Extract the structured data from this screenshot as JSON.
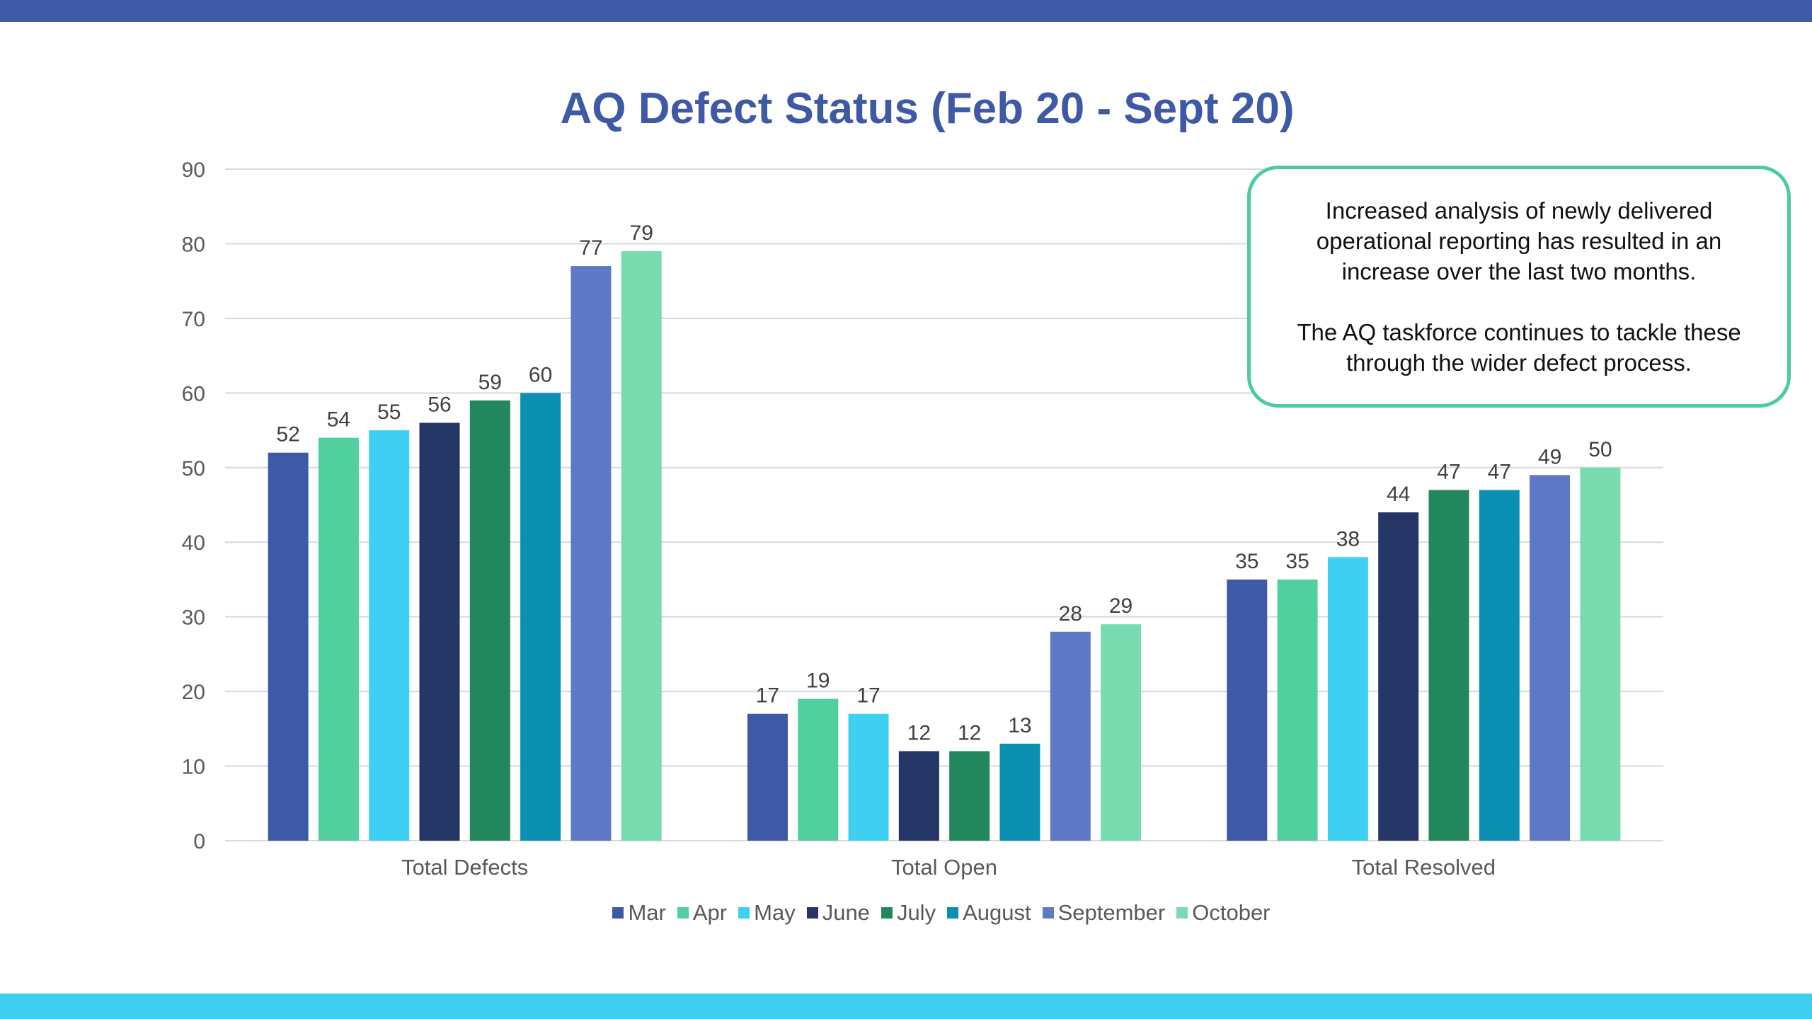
{
  "chart_data": {
    "type": "bar",
    "title": "AQ Defect Status (Feb 20 - Sept 20)",
    "categories": [
      "Total Defects",
      "Total Open",
      "Total Resolved"
    ],
    "series": [
      {
        "name": "Mar",
        "color": "#3e59a6",
        "values": [
          52,
          17,
          35
        ]
      },
      {
        "name": "Apr",
        "color": "#52cf9e",
        "values": [
          54,
          19,
          35
        ]
      },
      {
        "name": "May",
        "color": "#3fcff2",
        "values": [
          55,
          17,
          38
        ]
      },
      {
        "name": "June",
        "color": "#243665",
        "values": [
          56,
          12,
          44
        ]
      },
      {
        "name": "July",
        "color": "#23875e",
        "values": [
          59,
          12,
          47
        ]
      },
      {
        "name": "August",
        "color": "#0b8fb3",
        "values": [
          60,
          13,
          47
        ]
      },
      {
        "name": "September",
        "color": "#5d78c6",
        "values": [
          77,
          28,
          49
        ]
      },
      {
        "name": "October",
        "color": "#79dbb0",
        "values": [
          79,
          29,
          50
        ]
      }
    ],
    "ylim": [
      0,
      90
    ],
    "yticks": [
      0,
      10,
      20,
      30,
      40,
      50,
      60,
      70,
      80,
      90
    ],
    "xlabel": "",
    "ylabel": "",
    "grid": true,
    "legend_position": "bottom",
    "data_labels": true
  },
  "annotation": {
    "paragraph1": "Increased analysis of newly delivered\noperational reporting has resulted in an\nincrease over the last two months.",
    "paragraph2": "The AQ taskforce continues to tackle these\nthrough the wider defect process."
  },
  "colors": {
    "title": "#3e59a6",
    "top_bar": "#3e59a6",
    "bottom_bar": "#3fcff2",
    "callout_border": "#4dcaa0",
    "gridline": "#d9d9d9",
    "axis_text": "#595959"
  }
}
